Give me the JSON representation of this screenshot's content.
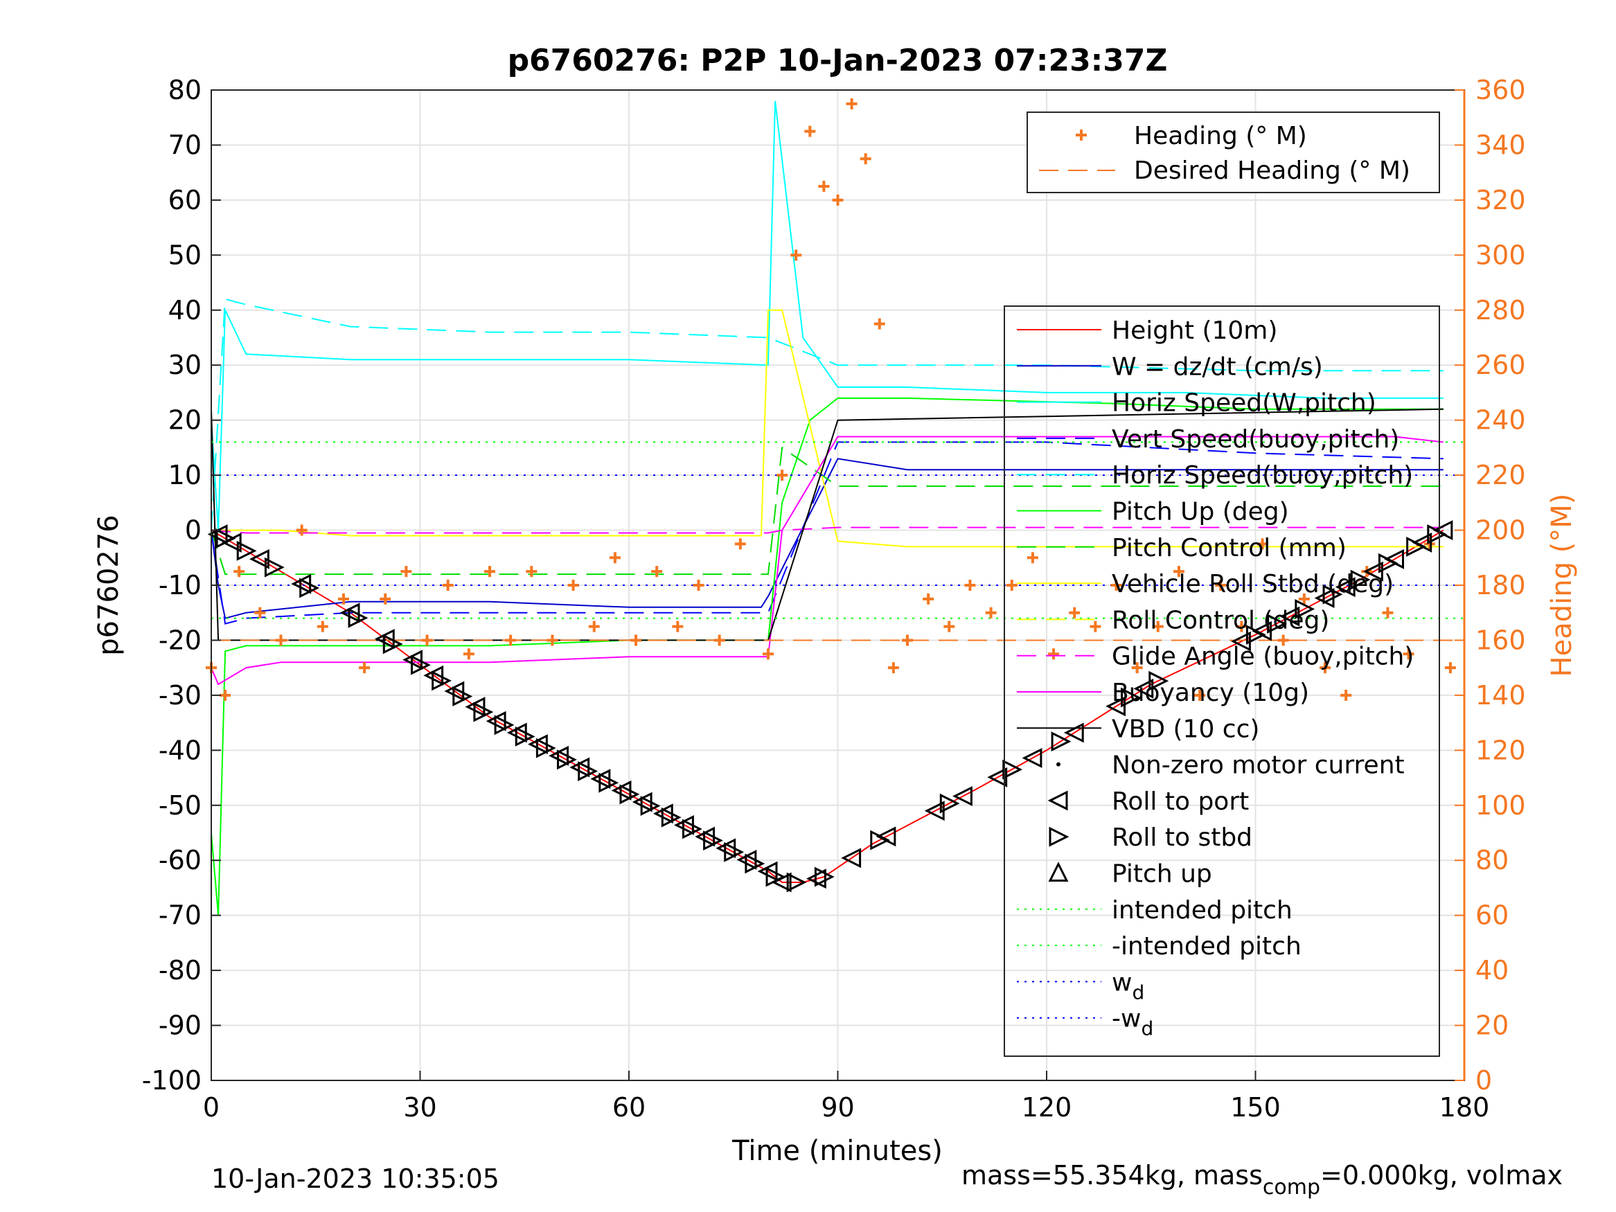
{
  "chart_data": {
    "type": "line",
    "title": "p6760276: P2P 10-Jan-2023 07:23:37Z",
    "xlabel": "Time (minutes)",
    "ylabel": "p6760276",
    "y2label": "Heading (°M)",
    "xlim": [
      0,
      180
    ],
    "ylim": [
      -100,
      80
    ],
    "y2lim": [
      0,
      360
    ],
    "xticks": [
      0,
      30,
      60,
      90,
      120,
      150,
      180
    ],
    "yticks": [
      -100,
      -90,
      -80,
      -70,
      -60,
      -50,
      -40,
      -30,
      -20,
      -10,
      0,
      10,
      20,
      30,
      40,
      50,
      60,
      70,
      80
    ],
    "y2ticks": [
      0,
      20,
      40,
      60,
      80,
      100,
      120,
      140,
      160,
      180,
      200,
      220,
      240,
      260,
      280,
      300,
      320,
      340,
      360
    ],
    "grid": true,
    "colors": {
      "height": "#ff0000",
      "w": "#0000cc",
      "horiz_speed_w": "#00ffff",
      "vert_speed_buoy": "#0000ff",
      "horiz_speed_buoy": "#00ffff",
      "pitch_up": "#00ff00",
      "pitch_control": "#00dd00",
      "roll_stbd": "#ffff00",
      "roll_control": "#ffff00",
      "glide_angle": "#ff00ff",
      "buoyancy": "#ff00ff",
      "vbd": "#000000",
      "heading": "#f47721",
      "intended_pitch": "#00ff00",
      "wd": "#0000ff"
    },
    "legend_heading": {
      "position": "top-right",
      "entries": [
        "Heading (° M)",
        "Desired Heading (° M)"
      ]
    },
    "legend_main": {
      "position": "right",
      "entries": [
        "Height (10m)",
        "W = dz/dt (cm/s)",
        "Horiz Speed(W,pitch)",
        "Vert Speed(buoy,pitch)",
        "Horiz Speed(buoy,pitch)",
        "Pitch Up (deg)",
        "Pitch Control (mm)",
        "Vehicle Roll Stbd (deg)",
        "Roll Control (deg)",
        "Glide Angle (buoy,pitch)",
        "Buoyancy (10g)",
        "VBD (10 cc)",
        "Non-zero motor current",
        "Roll to port",
        "Roll to stbd",
        "Pitch up",
        "intended pitch",
        "-intended pitch",
        "w",
        "-w"
      ],
      "subscript": "d"
    },
    "series": [
      {
        "name": "Height (10m)",
        "x": [
          0,
          20,
          40,
          60,
          70,
          80,
          82,
          85,
          88,
          95,
          110,
          120,
          135,
          150,
          165,
          177
        ],
        "values": [
          0,
          -15,
          -34,
          -48,
          -55,
          -62,
          -64,
          -64,
          -63,
          -57,
          -47,
          -40,
          -28,
          -19,
          -9,
          0
        ]
      },
      {
        "name": "W = dz/dt (cm/s)",
        "x": [
          0,
          1,
          2,
          5,
          20,
          40,
          60,
          79,
          80,
          90,
          100,
          130,
          150,
          177
        ],
        "values": [
          0,
          -10,
          -16,
          -15,
          -13,
          -13,
          -14,
          -14,
          -12,
          13,
          11,
          11,
          11,
          11
        ]
      },
      {
        "name": "Horiz Speed(W,pitch)",
        "x": [
          0,
          1,
          2,
          5,
          20,
          40,
          60,
          80,
          81,
          85,
          90,
          100,
          120,
          140,
          160,
          177
        ],
        "values": [
          20,
          0,
          40,
          32,
          31,
          31,
          31,
          30,
          78,
          35,
          26,
          26,
          25,
          25,
          24,
          24
        ]
      },
      {
        "name": "Vert Speed(buoy,pitch)",
        "x": [
          0,
          2,
          5,
          20,
          40,
          60,
          80,
          90,
          120,
          150,
          177
        ],
        "values": [
          0,
          -17,
          -16,
          -15,
          -15,
          -15,
          -15,
          16,
          16,
          14,
          13
        ]
      },
      {
        "name": "Horiz Speed(buoy,pitch)",
        "x": [
          0,
          2,
          5,
          20,
          40,
          60,
          80,
          90,
          120,
          150,
          177
        ],
        "values": [
          0,
          42,
          41,
          37,
          36,
          36,
          35,
          30,
          30,
          29,
          29
        ]
      },
      {
        "name": "Pitch Up (deg)",
        "x": [
          0,
          1,
          2,
          5,
          20,
          40,
          60,
          80,
          82,
          86,
          90,
          100,
          130,
          150,
          177
        ],
        "values": [
          -55,
          -70,
          -22,
          -21,
          -21,
          -21,
          -20,
          -20,
          5,
          20,
          24,
          24,
          23,
          22,
          22
        ]
      },
      {
        "name": "Pitch Control (mm)",
        "x": [
          0,
          2,
          5,
          80,
          82,
          90,
          177
        ],
        "values": [
          0,
          -8,
          -8,
          -8,
          15,
          8,
          8
        ]
      },
      {
        "name": "Vehicle Roll Stbd (deg)",
        "x": [
          0,
          5,
          10,
          20,
          40,
          60,
          79,
          80,
          82,
          90,
          100,
          120,
          150,
          177
        ],
        "values": [
          0,
          0,
          0,
          -1,
          -1,
          -1,
          -1,
          40,
          40,
          -2,
          -3,
          -3,
          -3,
          -3
        ]
      },
      {
        "name": "Glide Angle (buoy,pitch)",
        "x": [
          0,
          5,
          80,
          82,
          90,
          177
        ],
        "values": [
          0,
          -0.5,
          -0.5,
          0,
          0.5,
          0.5
        ]
      },
      {
        "name": "Buoyancy (10g)",
        "x": [
          0,
          1,
          5,
          10,
          20,
          40,
          60,
          80,
          82,
          90,
          120,
          150,
          170,
          177
        ],
        "values": [
          -25,
          -28,
          -25,
          -24,
          -24,
          -24,
          -23,
          -23,
          0,
          17,
          17,
          17,
          17,
          16
        ]
      },
      {
        "name": "VBD (10 cc)",
        "x": [
          0,
          1,
          80,
          90,
          177
        ],
        "values": [
          22,
          -20,
          -20,
          20,
          22
        ]
      },
      {
        "name": "intended pitch",
        "x": [
          0,
          180
        ],
        "values": [
          16,
          16
        ]
      },
      {
        "name": "-intended pitch",
        "x": [
          0,
          180
        ],
        "values": [
          -16,
          -16
        ]
      },
      {
        "name": "w",
        "x": [
          0,
          180
        ],
        "values": [
          10,
          10
        ]
      },
      {
        "name": "-w",
        "x": [
          0,
          180
        ],
        "values": [
          -10,
          -10
        ]
      }
    ],
    "heading_series": {
      "name": "Heading (° M)",
      "x": [
        0,
        2,
        4,
        7,
        10,
        13,
        16,
        19,
        22,
        25,
        28,
        31,
        34,
        37,
        40,
        43,
        46,
        49,
        52,
        55,
        58,
        61,
        64,
        67,
        70,
        73,
        76,
        80,
        82,
        84,
        86,
        88,
        90,
        92,
        94,
        96,
        98,
        100,
        103,
        106,
        109,
        112,
        115,
        118,
        121,
        124,
        127,
        130,
        133,
        136,
        139,
        142,
        145,
        148,
        151,
        154,
        157,
        160,
        163,
        166,
        169,
        172,
        175,
        178
      ],
      "values": [
        150,
        140,
        185,
        170,
        160,
        200,
        165,
        175,
        150,
        175,
        185,
        160,
        180,
        155,
        185,
        160,
        185,
        160,
        180,
        165,
        190,
        160,
        185,
        165,
        180,
        160,
        195,
        155,
        220,
        300,
        345,
        325,
        320,
        355,
        335,
        275,
        150,
        160,
        175,
        165,
        180,
        170,
        180,
        190,
        155,
        170,
        165,
        180,
        150,
        165,
        185,
        140,
        180,
        165,
        195,
        160,
        175,
        150,
        140,
        185,
        170,
        155,
        195,
        150
      ]
    },
    "desired_heading": {
      "name": "Desired Heading (° M)",
      "x": [
        0,
        180
      ],
      "values": [
        160,
        160
      ]
    },
    "markers": {
      "roll_to_port_x": [
        1,
        3,
        7,
        13,
        20,
        25,
        29,
        32,
        35,
        38,
        41,
        44,
        47,
        50,
        53,
        56,
        59,
        62,
        65,
        68,
        71,
        74,
        77,
        80,
        82,
        87,
        92,
        97,
        104,
        108,
        113,
        118,
        124,
        130,
        134,
        148,
        151,
        155,
        160,
        163,
        167,
        170,
        174,
        177
      ],
      "roll_to_stbd_x": [
        2,
        5,
        9,
        14,
        21,
        26,
        30,
        33,
        36,
        39,
        42,
        45,
        48,
        51,
        54,
        57,
        60,
        63,
        66,
        69,
        72,
        75,
        78,
        81,
        84,
        88,
        96,
        106,
        115,
        122,
        132,
        136,
        150,
        153,
        157,
        161,
        165,
        169,
        173,
        176
      ]
    }
  },
  "footer": {
    "left": "10-Jan-2023 10:35:05",
    "right_prefix": "mass=55.354kg, mass",
    "right_sub": "comp",
    "right_suffix": "=0.000kg, volmax"
  }
}
